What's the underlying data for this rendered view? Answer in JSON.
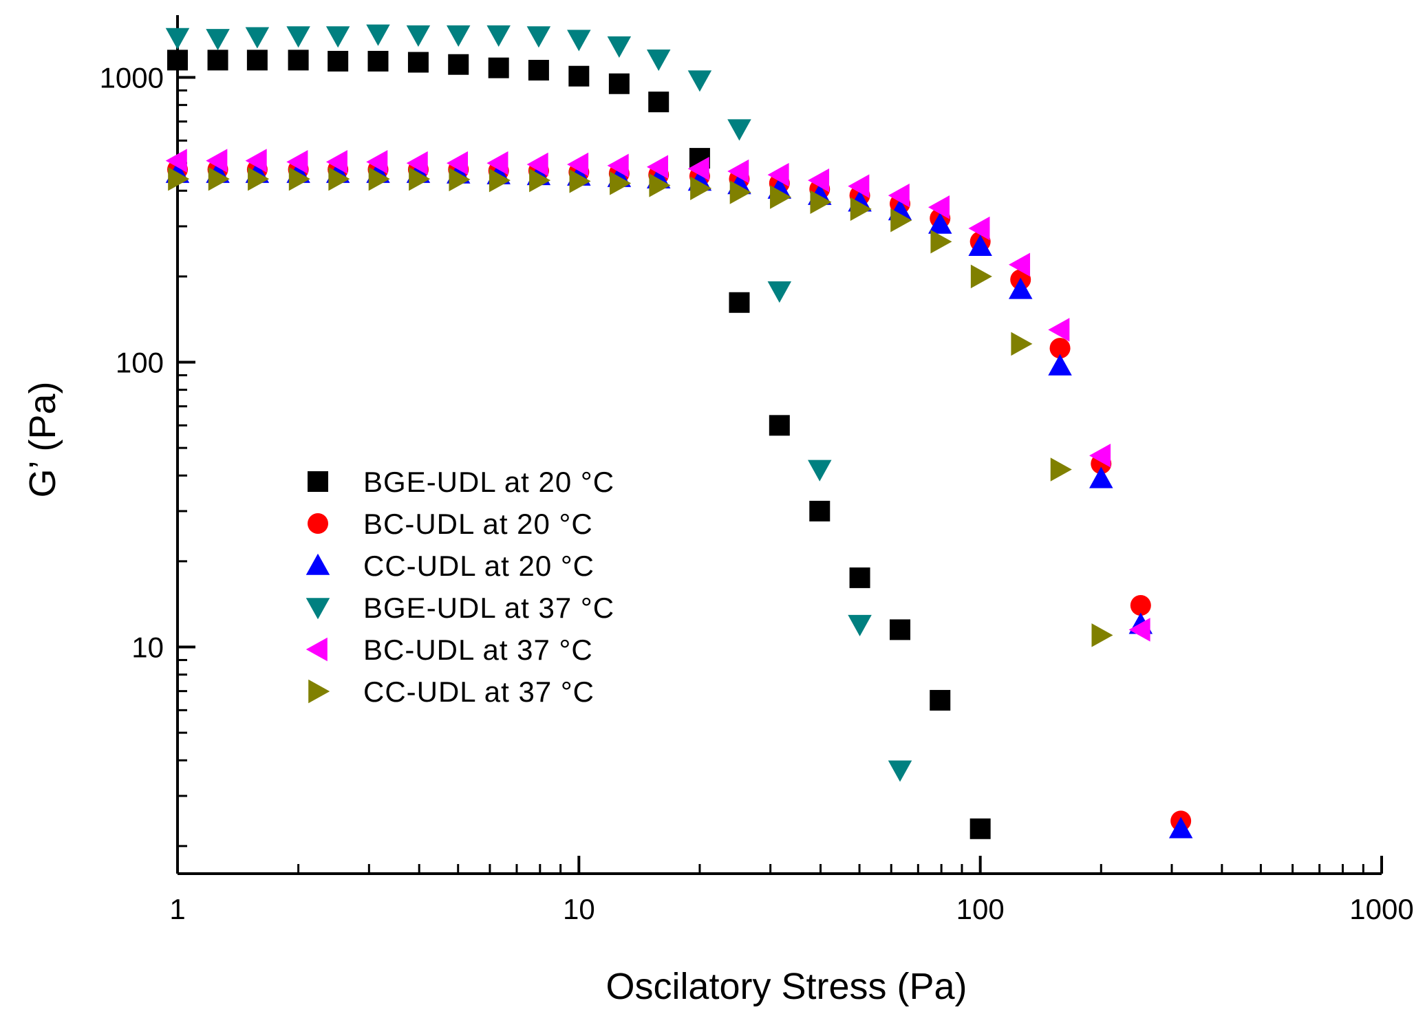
{
  "chart_data": {
    "type": "scatter",
    "xlabel": "Oscilatory Stress (Pa)",
    "ylabel": "G’ (Pa)",
    "xscale": "log",
    "yscale": "log",
    "xlim": [
      1,
      1000
    ],
    "ylim": [
      1.6,
      1600
    ],
    "x_ticks": [
      {
        "value": 1,
        "label": "1"
      },
      {
        "value": 10,
        "label": "10"
      },
      {
        "value": 100,
        "label": "100"
      },
      {
        "value": 1000,
        "label": "1000"
      }
    ],
    "y_ticks": [
      {
        "value": 10,
        "label": "10"
      },
      {
        "value": 100,
        "label": "100"
      },
      {
        "value": 1000,
        "label": "1000"
      }
    ],
    "grid": false,
    "legend_position": "center-left",
    "series": [
      {
        "name": "BGE-UDL at 20 °C",
        "marker": "square",
        "color": "#000000",
        "x": [
          1,
          1.26,
          1.58,
          2,
          2.51,
          3.16,
          3.98,
          5.01,
          6.31,
          7.94,
          10,
          12.6,
          15.8,
          20,
          25.1,
          31.6,
          39.8,
          50.1,
          63.1,
          79.4,
          100
        ],
        "y": [
          1150,
          1150,
          1150,
          1150,
          1140,
          1140,
          1130,
          1110,
          1080,
          1060,
          1010,
          950,
          820,
          520,
          162,
          60,
          30,
          17.5,
          11.5,
          6.5,
          2.3
        ]
      },
      {
        "name": "BC-UDL at 20 °C",
        "marker": "circle",
        "color": "#ff0000",
        "x": [
          1,
          1.26,
          1.58,
          2,
          2.51,
          3.16,
          3.98,
          5.01,
          6.31,
          7.94,
          10,
          12.6,
          15.8,
          20,
          25.1,
          31.6,
          39.8,
          50.1,
          63.1,
          79.4,
          100,
          126,
          158,
          200,
          251,
          316
        ],
        "y": [
          475,
          475,
          475,
          475,
          475,
          475,
          475,
          475,
          470,
          470,
          465,
          460,
          455,
          450,
          440,
          425,
          405,
          385,
          360,
          320,
          265,
          195,
          112,
          44,
          14,
          2.45
        ]
      },
      {
        "name": "CC-UDL at 20 °C",
        "marker": "triangle-up",
        "color": "#0000ff",
        "x": [
          1,
          1.26,
          1.58,
          2,
          2.51,
          3.16,
          3.98,
          5.01,
          6.31,
          7.94,
          10,
          12.6,
          15.8,
          20,
          25.1,
          31.6,
          39.8,
          50.1,
          63.1,
          79.4,
          100,
          126,
          158,
          200,
          251,
          316
        ],
        "y": [
          460,
          460,
          460,
          460,
          460,
          460,
          460,
          458,
          455,
          452,
          450,
          445,
          440,
          432,
          420,
          405,
          385,
          365,
          340,
          305,
          255,
          180,
          97,
          39,
          12,
          2.3
        ]
      },
      {
        "name": "BGE-UDL at 37 °C",
        "marker": "triangle-down",
        "color": "#008080",
        "x": [
          1,
          1.26,
          1.58,
          2,
          2.51,
          3.16,
          3.98,
          5.01,
          6.31,
          7.94,
          10,
          12.6,
          15.8,
          20,
          25.1,
          31.6,
          39.8,
          50.1,
          63.1
        ],
        "y": [
          1380,
          1370,
          1390,
          1400,
          1400,
          1420,
          1410,
          1410,
          1410,
          1400,
          1360,
          1290,
          1160,
          980,
          660,
          178,
          42,
          12,
          3.7
        ]
      },
      {
        "name": "BC-UDL at 37 °C",
        "marker": "triangle-left",
        "color": "#ff00ff",
        "x": [
          1,
          1.26,
          1.58,
          2,
          2.51,
          3.16,
          3.98,
          5.01,
          6.31,
          7.94,
          10,
          12.6,
          15.8,
          20,
          25.1,
          31.6,
          39.8,
          50.1,
          63.1,
          79.4,
          100,
          126,
          158,
          200,
          251
        ],
        "y": [
          510,
          510,
          510,
          505,
          505,
          505,
          500,
          500,
          500,
          495,
          495,
          490,
          485,
          478,
          468,
          455,
          435,
          415,
          385,
          350,
          295,
          220,
          130,
          47,
          11.5
        ]
      },
      {
        "name": "CC-UDL at 37 °C",
        "marker": "triangle-right",
        "color": "#808000",
        "x": [
          1,
          1.26,
          1.58,
          2,
          2.51,
          3.16,
          3.98,
          5.01,
          6.31,
          7.94,
          10,
          12.6,
          15.8,
          20,
          25.1,
          31.6,
          39.8,
          50.1,
          63.1,
          79.4,
          100,
          126,
          158,
          200
        ],
        "y": [
          440,
          440,
          440,
          440,
          440,
          440,
          440,
          438,
          435,
          435,
          432,
          425,
          418,
          408,
          395,
          380,
          365,
          345,
          315,
          265,
          200,
          116,
          42,
          11
        ]
      }
    ]
  }
}
